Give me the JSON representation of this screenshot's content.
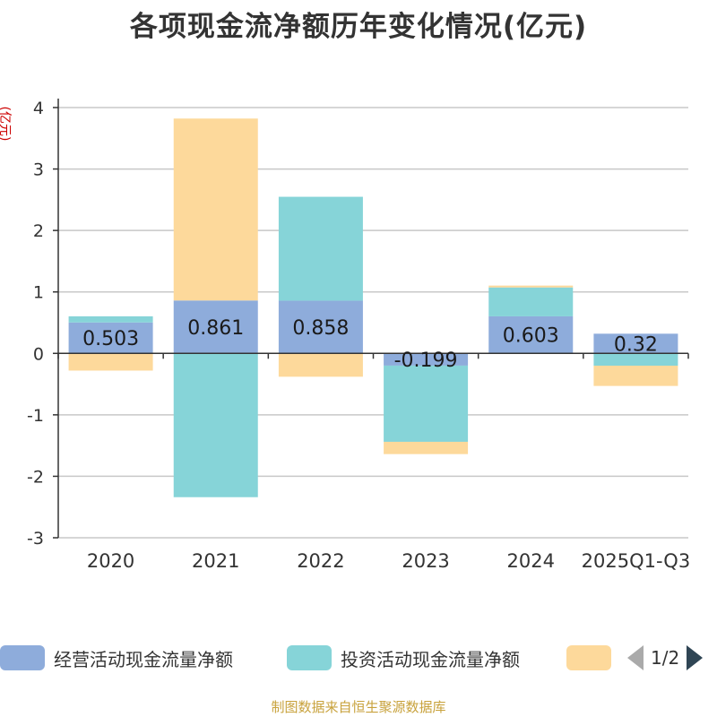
{
  "chart_data": {
    "type": "bar",
    "title": "各项现金流净额历年变化情况(亿元)",
    "ylabel": "(亿元)",
    "ylim": [
      -3,
      4
    ],
    "yticks": [
      "4",
      "3",
      "2",
      "1",
      "0",
      "-1",
      "-2",
      "-3"
    ],
    "categories": [
      "2020",
      "2021",
      "2022",
      "2023",
      "2024",
      "2025Q1-Q3"
    ],
    "stacked": true,
    "grid": true,
    "legend_position": "bottom",
    "series": [
      {
        "name": "经营活动现金流量净额",
        "color": "#8eacdb",
        "values": [
          0.503,
          0.861,
          0.858,
          -0.199,
          0.603,
          0.32
        ],
        "labels": [
          "0.503",
          "0.861",
          "0.858",
          "-0.199",
          "0.603",
          "0.32"
        ]
      },
      {
        "name": "投资活动现金流量净额",
        "color": "#86d4d8",
        "values": [
          0.1,
          -2.34,
          1.69,
          -1.24,
          0.47,
          -0.2
        ]
      },
      {
        "name": "",
        "color": "#fdd99b",
        "values": [
          -0.28,
          2.96,
          -0.38,
          -0.2,
          0.03,
          -0.33
        ]
      }
    ]
  },
  "legend": {
    "page": "1/2"
  },
  "source": "制图数据来自恒生聚源数据库"
}
